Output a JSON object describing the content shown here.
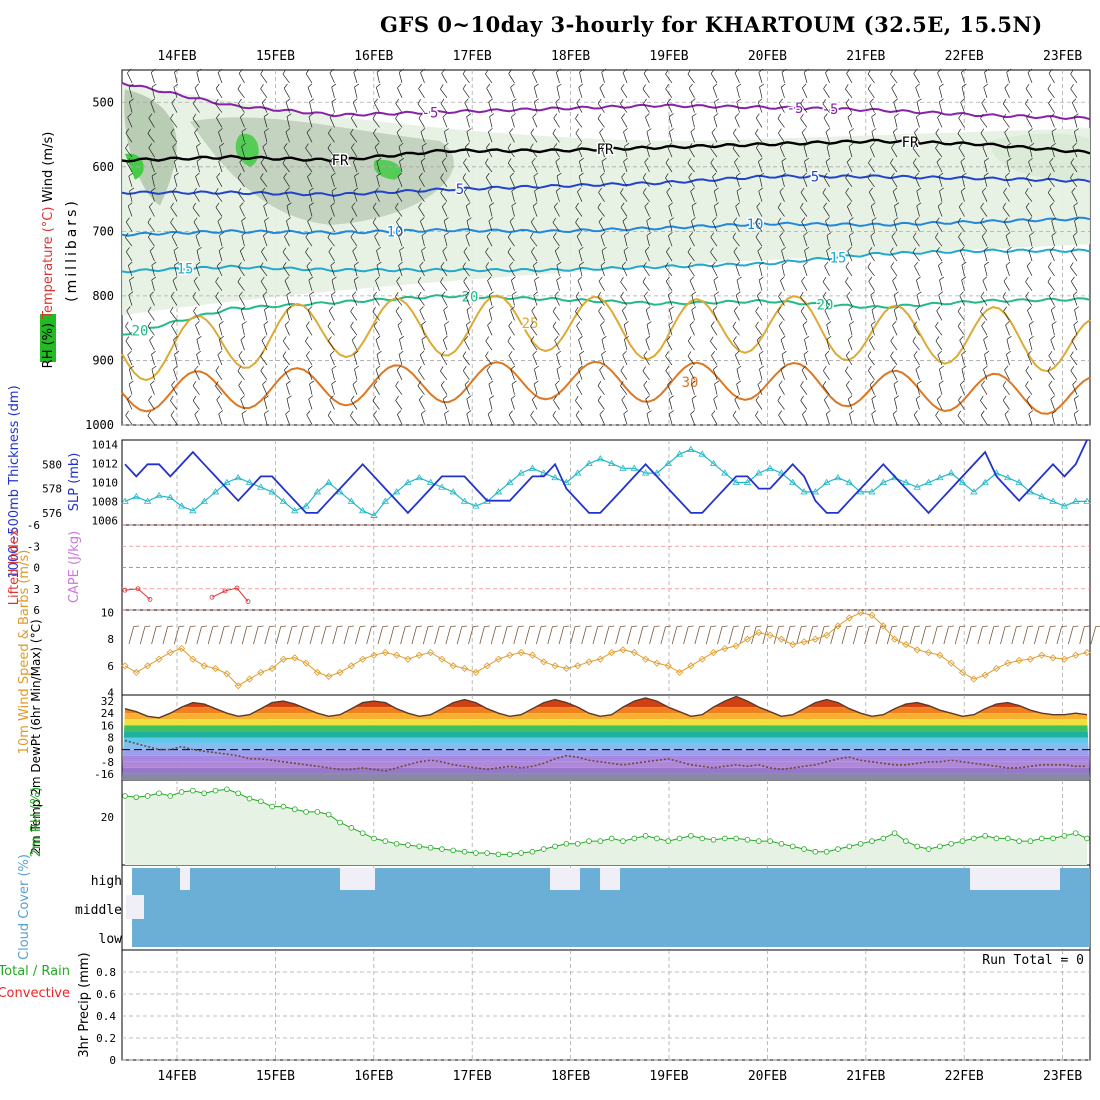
{
  "title": "GFS 0~10day 3-hourly for KHARTOUM (32.5E, 15.5N)",
  "colors": {
    "rh_label": "#22bb22",
    "temp_label": "#dd3333",
    "wind_label": "#2244cc",
    "thickness": "#2233cc",
    "slp": "#22b8c8",
    "lifted": "#dd3333",
    "cape": "#cc77dd",
    "wind10": "#e09a2a",
    "rh2m": "#22aa22",
    "cloud": "#6baed6",
    "cloud_gap": "#f0eef6",
    "precip_total": "#22aa22",
    "precip_conv": "#ee2222"
  },
  "chart_data": [
    {
      "type": "line",
      "name": "upper-air cross-section",
      "x": [
        "14FEB",
        "15FEB",
        "16FEB",
        "17FEB",
        "18FEB",
        "19FEB",
        "20FEB",
        "21FEB",
        "22FEB",
        "23FEB"
      ],
      "ylabel_parts": {
        "rh": "RH (%)",
        "temp": "Temperature (°C)",
        "wind": "Wind (m/s)",
        "unit": "(millibars)"
      },
      "y_ticks": [
        500,
        600,
        700,
        800,
        900,
        1000
      ],
      "ylim": [
        450,
        1000
      ],
      "isotherms": [
        {
          "label": "-5",
          "color": "#8822aa",
          "values": [
            470,
            505,
            520,
            515,
            510,
            505,
            508,
            512,
            520,
            525
          ]
        },
        {
          "label": "FR",
          "color": "#000000",
          "values": [
            590,
            585,
            590,
            575,
            575,
            570,
            565,
            560,
            565,
            578
          ]
        },
        {
          "label": "5",
          "color": "#2244cc",
          "values": [
            640,
            640,
            643,
            635,
            630,
            625,
            615,
            615,
            618,
            622
          ]
        },
        {
          "label": "10",
          "color": "#2288dd",
          "values": [
            705,
            700,
            702,
            698,
            700,
            695,
            688,
            690,
            685,
            680
          ]
        },
        {
          "label": "15",
          "color": "#22aacc",
          "values": [
            762,
            755,
            760,
            760,
            760,
            755,
            750,
            735,
            730,
            730
          ]
        },
        {
          "label": "20",
          "color": "#22bb88",
          "values": [
            860,
            820,
            810,
            800,
            805,
            812,
            808,
            818,
            808,
            805
          ]
        },
        {
          "label": "25",
          "color": "#ddaa33",
          "values": [
            890,
            870,
            850,
            848,
            840,
            855,
            840,
            860,
            860,
            880
          ]
        },
        {
          "label": "30",
          "color": "#dd7722",
          "values": [
            950,
            945,
            940,
            935,
            930,
            935,
            930,
            945,
            950,
            955
          ]
        }
      ],
      "contour_labels": [
        "-5",
        "FR",
        "5",
        "10",
        "15",
        "20",
        "25",
        "30"
      ]
    },
    {
      "type": "line",
      "name": "thickness-slp",
      "ylabel": "1000~500mb Thickness (dm)",
      "ylabel2": "SLP (mb)",
      "y_ticks": [
        576,
        578,
        580
      ],
      "y2_ticks": [
        1006,
        1008,
        1010,
        1012,
        1014
      ],
      "ylim": [
        575,
        582
      ],
      "y2lim": [
        1005.5,
        1014.5
      ],
      "thickness": [
        580,
        579,
        580,
        580,
        579,
        580,
        581,
        580,
        579,
        578,
        577,
        578,
        579,
        579,
        578,
        577,
        576,
        576,
        577,
        578,
        579,
        580,
        579,
        578,
        577,
        576,
        577,
        578,
        579,
        579,
        579,
        578,
        577,
        577,
        577,
        578,
        579,
        579,
        580,
        578,
        577,
        576,
        576,
        577,
        578,
        579,
        580,
        579,
        578,
        577,
        576,
        576,
        577,
        578,
        579,
        579,
        578,
        578,
        579,
        580,
        579,
        577,
        576,
        576,
        577,
        578,
        579,
        580,
        579,
        578,
        577,
        576,
        577,
        578,
        579,
        580,
        581,
        579,
        578,
        577,
        578,
        579,
        580,
        579,
        580,
        582
      ],
      "slp": [
        1008,
        1008.5,
        1008,
        1008.6,
        1008.4,
        1007.5,
        1007,
        1008,
        1009,
        1010,
        1010.5,
        1010,
        1009.5,
        1009,
        1008,
        1007,
        1007.5,
        1009,
        1010,
        1009,
        1008,
        1007,
        1006.5,
        1008,
        1009,
        1010,
        1010.5,
        1010,
        1009.5,
        1009,
        1008,
        1007.5,
        1008,
        1009,
        1010,
        1011,
        1011.5,
        1011,
        1010.5,
        1010,
        1011,
        1012,
        1012.5,
        1012,
        1011.5,
        1011.5,
        1011,
        1011,
        1012,
        1013,
        1013.5,
        1013,
        1012,
        1011,
        1010,
        1010,
        1011,
        1011.5,
        1011,
        1010,
        1009,
        1009,
        1010,
        1010.5,
        1010,
        1009,
        1009,
        1010,
        1010.5,
        1010,
        1009.5,
        1010,
        1010.5,
        1011,
        1010,
        1009,
        1010,
        1011,
        1010.5,
        1010,
        1009,
        1008.5,
        1008,
        1007.5,
        1008,
        1008
      ]
    },
    {
      "type": "line",
      "name": "lifted-index-cape",
      "ylabel": "Lifted Index",
      "ylabel2": "CAPE (J/kg)",
      "y_ticks": [
        -6,
        -3,
        0,
        3,
        6
      ],
      "y_tick_labels": [
        "-6",
        "-3",
        "0",
        "3",
        "6"
      ],
      "ylim": [
        -6,
        6
      ],
      "lifted": [
        3.2,
        3.0,
        4.5,
        null,
        null,
        null,
        4.2,
        3.3,
        2.9,
        4.8
      ]
    },
    {
      "type": "line",
      "name": "10m-wind",
      "ylabel": "10m Wind Speed & Barbs (m/s)",
      "y_ticks": [
        4,
        6,
        8,
        10
      ],
      "ylim": [
        3.8,
        10.2
      ],
      "speed": [
        6,
        5.5,
        6,
        6.5,
        7,
        7.3,
        6.5,
        6,
        5.8,
        5.4,
        4.5,
        5,
        5.5,
        5.8,
        6.5,
        6.6,
        6.2,
        5.5,
        5.2,
        5.5,
        6,
        6.5,
        6.8,
        7,
        6.8,
        6.5,
        6.8,
        7,
        6.5,
        6,
        5.8,
        5.5,
        6,
        6.5,
        6.8,
        7,
        6.8,
        6.3,
        6,
        5.8,
        6,
        6.3,
        6.5,
        7,
        7.2,
        7,
        6.5,
        6.2,
        6,
        5.5,
        6,
        6.5,
        7,
        7.3,
        7.5,
        8,
        8.5,
        8.3,
        8,
        7.6,
        7.8,
        8,
        8.3,
        9,
        9.6,
        10,
        9.8,
        9,
        8,
        7.6,
        7.2,
        7,
        6.8,
        6.2,
        5.5,
        5,
        5.3,
        5.8,
        6.2,
        6.4,
        6.5,
        6.8,
        6.6,
        6.5,
        6.8,
        7
      ]
    },
    {
      "type": "area",
      "name": "2m-temp",
      "ylabel": "2m Temp 2m DewPt (6hr Min/Max) (°C)",
      "y_ticks": [
        -16,
        -8,
        0,
        8,
        16,
        24,
        32
      ],
      "ylim": [
        -20,
        36
      ],
      "temp": [
        27,
        25,
        22,
        21,
        24,
        28,
        31,
        30,
        27,
        24,
        22,
        23,
        27,
        31,
        32,
        30,
        27,
        24,
        22,
        23,
        27,
        31,
        32,
        31,
        27,
        24,
        22,
        23,
        27,
        31,
        33,
        31,
        27,
        24,
        22,
        23,
        27,
        31,
        33,
        31,
        28,
        24,
        22,
        23,
        28,
        32,
        34,
        32,
        28,
        25,
        22,
        23,
        28,
        32,
        35,
        32,
        28,
        25,
        22,
        23,
        27,
        31,
        33,
        31,
        27,
        24,
        22,
        23,
        27,
        30,
        31,
        29,
        26,
        24,
        22,
        23,
        27,
        30,
        31,
        29,
        26,
        24,
        23,
        23,
        24,
        23
      ],
      "dewpt": [
        6,
        4,
        2,
        0,
        0,
        2,
        0,
        -1,
        -2,
        -3,
        -4,
        -6,
        -6,
        -7,
        -8,
        -9,
        -10,
        -11,
        -12,
        -13,
        -13,
        -12,
        -13,
        -14,
        -12,
        -10,
        -8,
        -7,
        -8,
        -10,
        -11,
        -12,
        -13,
        -12,
        -11,
        -12,
        -11,
        -9,
        -6,
        -4,
        -5,
        -7,
        -8,
        -9,
        -10,
        -9,
        -8,
        -7,
        -6,
        -8,
        -10,
        -11,
        -12,
        -11,
        -10,
        -11,
        -10,
        -12,
        -13,
        -12,
        -11,
        -10,
        -8,
        -6,
        -5,
        -7,
        -8,
        -9,
        -10,
        -10,
        -9,
        -8,
        -8,
        -7,
        -8,
        -9,
        -10,
        -11,
        -12,
        -12,
        -11,
        -10,
        -10,
        -10,
        -11,
        -11
      ]
    },
    {
      "type": "area",
      "name": "2m-rh",
      "ylabel": "2m RH (%)",
      "y_ticks": [
        20
      ],
      "ylim": [
        2,
        34
      ],
      "values": [
        28,
        27.5,
        28,
        29,
        28,
        29.5,
        30,
        29,
        30,
        30.5,
        29,
        27,
        26,
        24,
        24,
        23,
        22,
        22,
        21,
        18,
        16,
        14,
        12,
        11,
        10,
        9.5,
        9,
        8.5,
        8,
        7.5,
        7,
        6.5,
        6.5,
        6,
        6,
        6.5,
        7,
        8,
        9,
        10,
        10,
        11,
        11,
        12,
        11,
        12,
        13,
        12,
        11,
        12,
        13,
        12,
        11.5,
        12,
        12,
        11.5,
        11,
        11,
        10,
        9,
        8,
        7,
        7,
        8,
        9,
        10,
        11,
        12,
        14,
        11,
        9,
        8,
        9,
        10,
        11,
        12,
        13,
        12,
        12,
        11,
        11,
        12,
        12,
        13,
        14,
        12
      ]
    },
    {
      "type": "area",
      "name": "cloud-cover",
      "ylabel": "Cloud Cover (%)",
      "y_tick_labels": [
        "high",
        "middle",
        "low"
      ]
    },
    {
      "type": "line",
      "name": "precip",
      "ylabel_total": "Total / Rain",
      "ylabel_conv": "Convective",
      "ylabel_unit": "3hr Precip (mm)",
      "y_ticks": [
        0,
        0.2,
        0.4,
        0.6,
        0.8
      ],
      "ylim": [
        0,
        1
      ],
      "annotation": "Run Total = 0"
    }
  ]
}
